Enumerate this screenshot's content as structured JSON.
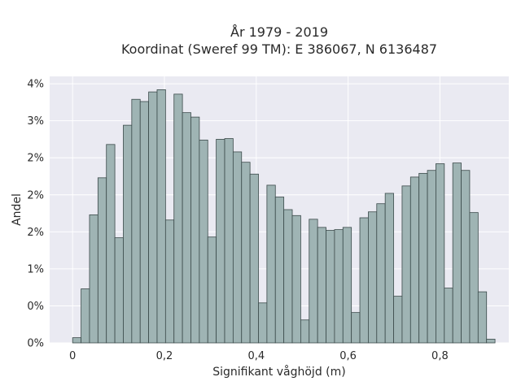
{
  "chart_data": {
    "type": "bar",
    "title_line1": "År 1979 - 2019",
    "title_line2": "Koordinat (Sweref 99 TM): E 386067, N 6136487",
    "xlabel": "Signifikant våghöjd (m)",
    "ylabel": "Andel",
    "x_ticks": [
      {
        "value": 0,
        "label": "0"
      },
      {
        "value": 0.2,
        "label": "0,2"
      },
      {
        "value": 0.4,
        "label": "0,4"
      },
      {
        "value": 0.6,
        "label": "0,6"
      },
      {
        "value": 0.8,
        "label": "0,8"
      }
    ],
    "y_ticks": [
      {
        "value": 0,
        "label": "0%"
      },
      {
        "value": 0.5,
        "label": "0%"
      },
      {
        "value": 1.0,
        "label": "1%"
      },
      {
        "value": 1.5,
        "label": "2%"
      },
      {
        "value": 2.0,
        "label": "2%"
      },
      {
        "value": 2.5,
        "label": "2%"
      },
      {
        "value": 3.0,
        "label": "3%"
      },
      {
        "value": 3.5,
        "label": "4%"
      }
    ],
    "xlim": [
      -0.05,
      0.95
    ],
    "ylim": [
      0,
      3.6
    ],
    "bin_width": 0.0184,
    "bin_start": 0.0,
    "values": [
      0.07,
      0.73,
      1.73,
      2.23,
      2.68,
      1.42,
      2.94,
      3.29,
      3.26,
      3.39,
      3.42,
      1.66,
      3.36,
      3.11,
      3.05,
      2.74,
      1.43,
      2.75,
      2.76,
      2.58,
      2.44,
      2.28,
      0.54,
      2.13,
      1.97,
      1.8,
      1.72,
      0.31,
      1.67,
      1.56,
      1.52,
      1.53,
      1.56,
      0.41,
      1.69,
      1.77,
      1.88,
      2.02,
      0.63,
      2.12,
      2.24,
      2.29,
      2.33,
      2.42,
      0.74,
      2.43,
      2.33,
      1.76,
      0.69,
      0.05
    ],
    "grid": true
  }
}
